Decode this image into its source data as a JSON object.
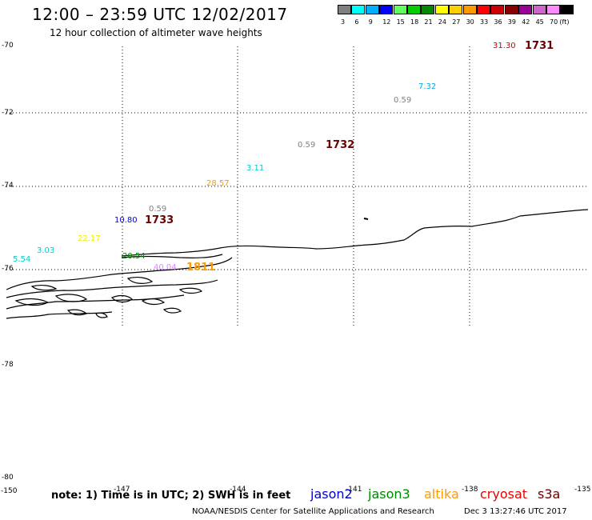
{
  "header": {
    "title": "12:00 – 23:59 UTC 12/02/2017",
    "subtitle": "12 hour collection of altimeter wave heights"
  },
  "colorbar": {
    "swatches": [
      {
        "color": "#808080",
        "label": "3"
      },
      {
        "color": "#00ffff",
        "label": "6"
      },
      {
        "color": "#00b0ff",
        "label": "9"
      },
      {
        "color": "#0000ff",
        "label": "12"
      },
      {
        "color": "#60ff60",
        "label": "15"
      },
      {
        "color": "#00cc00",
        "label": "18"
      },
      {
        "color": "#008800",
        "label": "21"
      },
      {
        "color": "#ffff00",
        "label": "24"
      },
      {
        "color": "#ffd000",
        "label": "27"
      },
      {
        "color": "#ff9900",
        "label": "30"
      },
      {
        "color": "#ff0000",
        "label": "33"
      },
      {
        "color": "#cc0000",
        "label": "36"
      },
      {
        "color": "#880000",
        "label": "39"
      },
      {
        "color": "#990099",
        "label": "42"
      },
      {
        "color": "#cc66cc",
        "label": "45"
      },
      {
        "color": "#ff88ff",
        "label": "70"
      },
      {
        "color": "#000000",
        "label": "(ft)"
      }
    ]
  },
  "lat_labels": [
    "-70",
    "-72",
    "-74",
    "-76",
    "-78",
    "-80"
  ],
  "lon_labels": [
    "-150",
    "-147",
    "-144",
    "-141",
    "-138",
    "-135"
  ],
  "wave_values": [
    {
      "text": "31.30",
      "color": "#cc0000"
    },
    {
      "text": "7.32",
      "color": "#00aaee"
    },
    {
      "text": "0.59",
      "color": "#808080"
    },
    {
      "text": "0.59",
      "color": "#808080"
    },
    {
      "text": "3.11",
      "color": "#00cccc"
    },
    {
      "text": "28.57",
      "color": "#ff9900"
    },
    {
      "text": "0.59",
      "color": "#808080"
    },
    {
      "text": "10.80",
      "color": "#0000cc"
    },
    {
      "text": "22.17",
      "color": "#eeee00"
    },
    {
      "text": "3.03",
      "color": "#00cccc"
    },
    {
      "text": "5.54",
      "color": "#00cccc"
    },
    {
      "text": "20.54",
      "color": "#008800"
    },
    {
      "text": "40.04",
      "color": "#dd88ff"
    }
  ],
  "time_marks": [
    "1731",
    "1732",
    "1733",
    "1811"
  ],
  "footer": {
    "note": "note: 1) Time is in UTC; 2) SWH is in feet",
    "satellites": [
      {
        "name": "jason2",
        "color": "#0000cc"
      },
      {
        "name": "jason3",
        "color": "#008800"
      },
      {
        "name": "altika",
        "color": "#ff9900"
      },
      {
        "name": "cryosat",
        "color": "#ee0000"
      },
      {
        "name": "s3a",
        "color": "#6b0000"
      }
    ],
    "credit": "NOAA/NESDIS Center for Satellite Applications and Research",
    "timestamp": "Dec  3 13:27:46 UTC 2017"
  }
}
